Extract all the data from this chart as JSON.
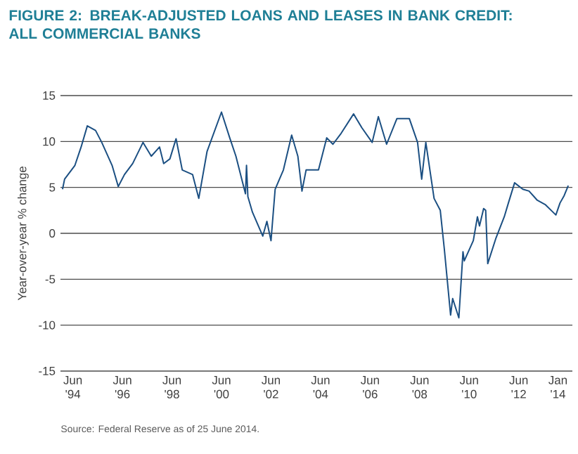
{
  "chart_data": {
    "type": "line",
    "title": "FIGURE 2: BREAK-ADJUSTED LOANS AND LEASES IN BANK CREDIT: ALL COMMERCIAL BANKS",
    "ylabel": "Year-over-year % change",
    "annotations": [
      "Source: Federal Reserve as of 25 June 2014."
    ],
    "x": [
      "1994-01",
      "1994-02",
      "1994-07",
      "1994-10",
      "1995-01",
      "1995-05",
      "1995-08",
      "1996-01",
      "1996-04",
      "1996-07",
      "1996-11",
      "1997-04",
      "1997-08",
      "1997-12",
      "1998-02",
      "1998-05",
      "1998-08",
      "1998-11",
      "1999-04",
      "1999-07",
      "1999-11",
      "2000-06",
      "2000-10",
      "2001-01",
      "2001-05-20",
      "2001-06-05",
      "2001-06-25",
      "2001-09",
      "2002-02",
      "2002-04",
      "2002-06",
      "2002-08",
      "2002-12",
      "2003-04",
      "2003-07",
      "2003-09",
      "2003-11",
      "2004-05",
      "2004-09",
      "2004-12",
      "2005-04",
      "2005-10",
      "2006-02",
      "2006-07",
      "2006-10",
      "2007-02",
      "2007-07",
      "2008-01",
      "2008-05",
      "2008-07",
      "2008-09",
      "2009-01",
      "2009-04",
      "2009-06",
      "2009-09",
      "2009-10",
      "2010-01",
      "2010-03-01",
      "2010-03-20",
      "2010-08",
      "2010-10",
      "2010-11",
      "2011-01",
      "2011-02",
      "2011-03",
      "2011-07",
      "2011-11",
      "2012-01",
      "2012-04",
      "2012-08",
      "2012-11",
      "2013-03",
      "2013-07",
      "2013-12",
      "2014-02",
      "2014-04",
      "2014-06"
    ],
    "series": [
      {
        "color": "#1b4f82",
        "values": [
          4.8,
          5.9,
          7.4,
          9.4,
          11.7,
          11.2,
          9.9,
          7.4,
          5.1,
          6.4,
          7.6,
          9.9,
          8.4,
          9.4,
          7.6,
          8.1,
          10.3,
          6.9,
          6.4,
          3.8,
          8.9,
          13.2,
          10.4,
          8.4,
          4.3,
          7.4,
          4.0,
          2.3,
          -0.3,
          1.3,
          -0.8,
          4.8,
          6.9,
          10.7,
          8.4,
          4.6,
          6.9,
          6.9,
          10.4,
          9.7,
          10.9,
          13.0,
          11.5,
          9.9,
          12.7,
          9.7,
          12.5,
          12.5,
          9.9,
          5.9,
          9.9,
          3.8,
          2.5,
          -1.8,
          -8.9,
          -7.1,
          -9.2,
          -2.0,
          -3.0,
          -0.8,
          1.8,
          0.8,
          2.7,
          2.5,
          -3.3,
          -0.5,
          1.8,
          3.3,
          5.5,
          4.8,
          4.6,
          3.6,
          3.1,
          2.0,
          3.3,
          4.1,
          5.2
        ]
      }
    ],
    "xlim": [
      "1993-12",
      "2014-08"
    ],
    "xticks": [
      {
        "value": "1994-06",
        "label": "Jun '94"
      },
      {
        "value": "1996-06",
        "label": "Jun '96"
      },
      {
        "value": "1998-06",
        "label": "Jun '98"
      },
      {
        "value": "2000-06",
        "label": "Jun '00"
      },
      {
        "value": "2002-06",
        "label": "Jun '02"
      },
      {
        "value": "2004-06",
        "label": "Jun '04"
      },
      {
        "value": "2006-06",
        "label": "Jun '06"
      },
      {
        "value": "2008-06",
        "label": "Jun '08"
      },
      {
        "value": "2010-06",
        "label": "Jun '10"
      },
      {
        "value": "2012-06",
        "label": "Jun '12"
      },
      {
        "value": "2014-01",
        "label": "Jan '14"
      }
    ],
    "ylim": [
      -15,
      15
    ],
    "yticks": [
      -15,
      -10,
      -5,
      0,
      5,
      10,
      15
    ],
    "grid": "y",
    "marker": "none",
    "line_style": "solid"
  }
}
